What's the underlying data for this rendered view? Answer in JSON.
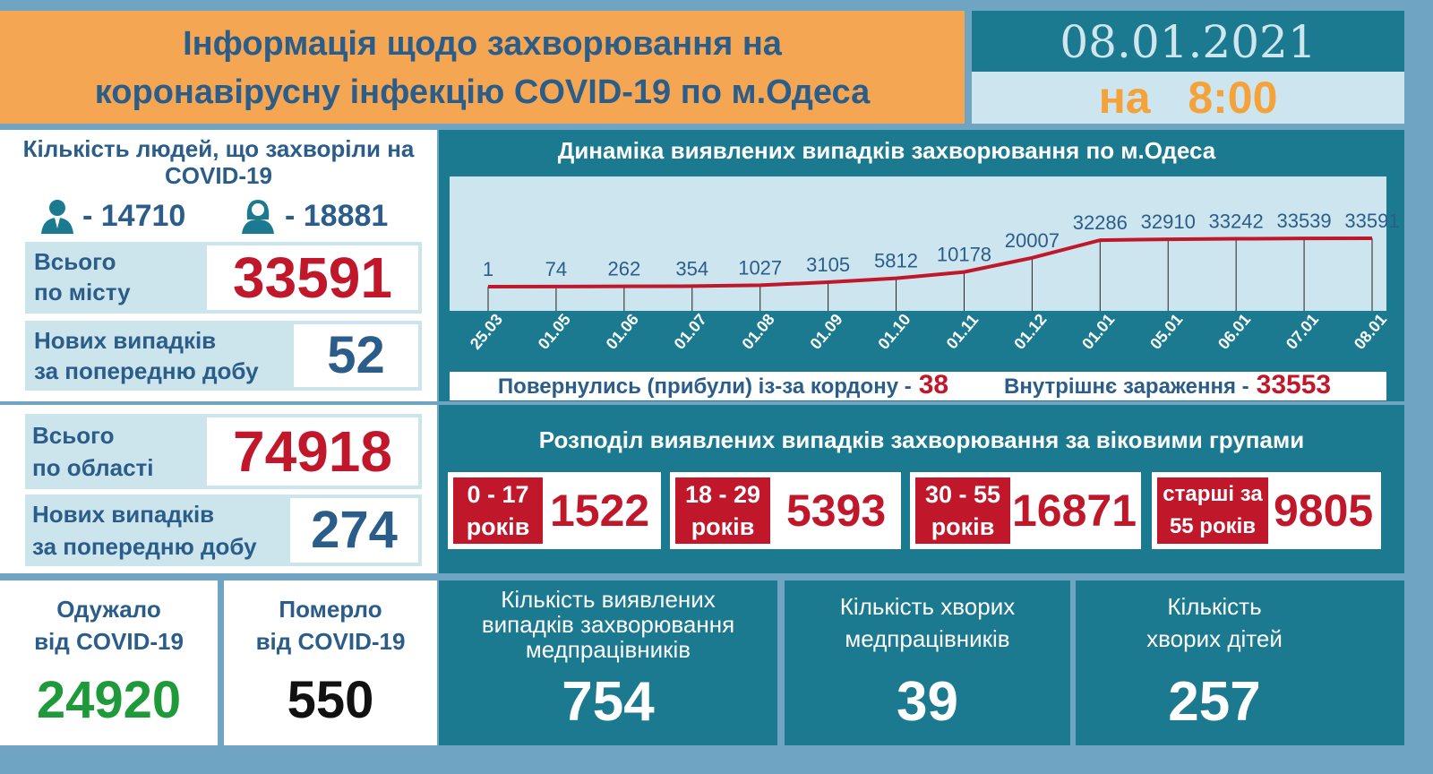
{
  "header": {
    "title_line1": "Інформація щодо захворювання на",
    "title_line2": "коронавірусну інфекцію COVID-19 по м.Одеса",
    "date": "08.01.2021",
    "time_prefix": "на",
    "time": "8:00"
  },
  "city": {
    "heading": "Кількість людей, що захворіли на COVID-19",
    "men": "- 14710",
    "women": "- 18881",
    "total_label_1": "Всього",
    "total_label_2": "по місту",
    "total": "33591",
    "new_label_1": "Нових випадків",
    "new_label_2": "за попередню добу",
    "new": "52"
  },
  "region": {
    "total_label_1": "Всього",
    "total_label_2": "по області",
    "total": "74918",
    "new_label_1": "Нових випадків",
    "new_label_2": "за попередню добу",
    "new": "274"
  },
  "chart_data": {
    "type": "line",
    "title": "Динаміка виявлених випадків захворювання по м.Одеса",
    "categories": [
      "25.03",
      "01.05",
      "01.06",
      "01.07",
      "01.08",
      "01.09",
      "01.10",
      "01.11",
      "01.12",
      "01.01",
      "05.01",
      "06.01",
      "07.01",
      "08.01"
    ],
    "values": [
      1,
      74,
      262,
      354,
      1027,
      3105,
      5812,
      10178,
      20007,
      32286,
      32910,
      33242,
      33539,
      33591
    ],
    "color": "#c0182a"
  },
  "sources": {
    "returned_label": "Повернулись (прибули) із-за кордону -",
    "returned": "38",
    "internal_label": "Внутрішнє зараження  -",
    "internal": "33553"
  },
  "ages": {
    "title": "Розподіл виявлених випадків захворювання за віковими групами",
    "groups": [
      {
        "l1": "0 - 17",
        "l2": "років",
        "value": "1522"
      },
      {
        "l1": "18 - 29",
        "l2": "років",
        "value": "5393"
      },
      {
        "l1": "30 - 55",
        "l2": "років",
        "value": "16871"
      },
      {
        "l1": "старші за",
        "l2": "55 років",
        "value": "9805"
      }
    ]
  },
  "outcomes": {
    "recovered_l1": "Одужало",
    "recovered_l2": "від COVID-19",
    "recovered": "24920",
    "died_l1": "Померло",
    "died_l2": "від COVID-19",
    "died": "550"
  },
  "medical": {
    "cases_l1": "Кількість виявлених",
    "cases_l2": "випадків захворювання",
    "cases_l3": "медпрацівників",
    "cases": "754",
    "sick_l1": "Кількість хворих",
    "sick_l2": "медпрацівників",
    "sick": "39",
    "kids_l1": "Кількість",
    "kids_l2": "хворих дітей",
    "kids": "257"
  }
}
